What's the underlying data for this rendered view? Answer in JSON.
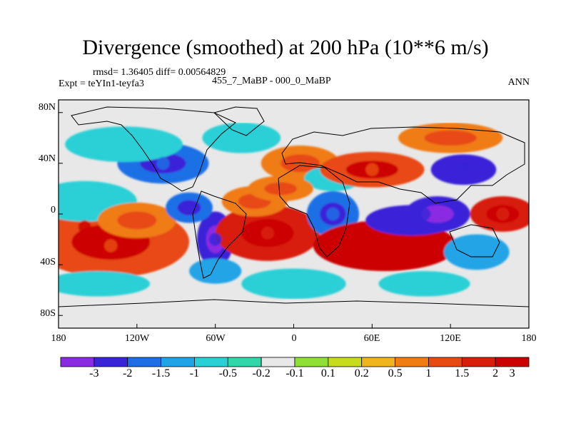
{
  "title": "Divergence (smoothed) at 200 hPa (10**6 m/s)",
  "stats_line": "rmsd= 1.36405 diff= 0.00564829",
  "experiment": "Expt = teYIn1-teyfa3",
  "case_label": "455_7_MaBP - 000_0_MaBP",
  "season": "ANN",
  "lat_labels": [
    "80N",
    "40N",
    "0",
    "40S",
    "80S"
  ],
  "lon_labels": [
    "180",
    "120W",
    "60W",
    "0",
    "60E",
    "120E",
    "180"
  ],
  "colorbar": {
    "labels": [
      "-3",
      "-2",
      "-1.5",
      "-1",
      "-0.5",
      "-0.2",
      "-0.1",
      "0.1",
      "0.2",
      "0.5",
      "1",
      "1.5",
      "2",
      "3"
    ],
    "colors": [
      "#8a2be2",
      "#3a24d8",
      "#1e6fe6",
      "#20a4e6",
      "#2bd0d6",
      "#33d6a8",
      "#e8e8e8",
      "#8ee036",
      "#c8dc1e",
      "#f0b41e",
      "#f07c14",
      "#e84a14",
      "#d81e0a",
      "#cc0000"
    ]
  },
  "chart_data": {
    "type": "filled-contour-map",
    "title": "Divergence (smoothed) at 200 hPa (10**6 m/s)",
    "units": "10**6 m/s",
    "xlim": [
      -180,
      180
    ],
    "ylim": [
      -90,
      90
    ],
    "contour_levels": [
      -3,
      -2,
      -1.5,
      -1,
      -0.5,
      -0.2,
      -0.1,
      0.1,
      0.2,
      0.5,
      1,
      1.5,
      2,
      3
    ],
    "features": [
      {
        "name": "tropical-pacific-positive-band",
        "lon": -160,
        "lat": -10,
        "value": 2.2
      },
      {
        "name": "south-pacific-positive",
        "lon": -140,
        "lat": -25,
        "value": 1.5
      },
      {
        "name": "south-america-negative",
        "lon": -60,
        "lat": -20,
        "value": -2.5
      },
      {
        "name": "south-atlantic-positive",
        "lon": -20,
        "lat": -15,
        "value": 1.8
      },
      {
        "name": "africa-negative",
        "lon": 30,
        "lat": 0,
        "value": -1.5
      },
      {
        "name": "indian-ocean-positive",
        "lon": 70,
        "lat": -25,
        "value": 2.2
      },
      {
        "name": "maritime-continent-negative",
        "lon": 100,
        "lat": 0,
        "value": -2.8
      },
      {
        "name": "west-pacific-positive",
        "lon": 160,
        "lat": 0,
        "value": 2.0
      },
      {
        "name": "eurasia-positive",
        "lon": 60,
        "lat": 35,
        "value": 1.5
      },
      {
        "name": "east-asia-negative",
        "lon": 130,
        "lat": 35,
        "value": -2.0
      },
      {
        "name": "north-america-negative",
        "lon": -100,
        "lat": 40,
        "value": -1.5
      }
    ]
  }
}
